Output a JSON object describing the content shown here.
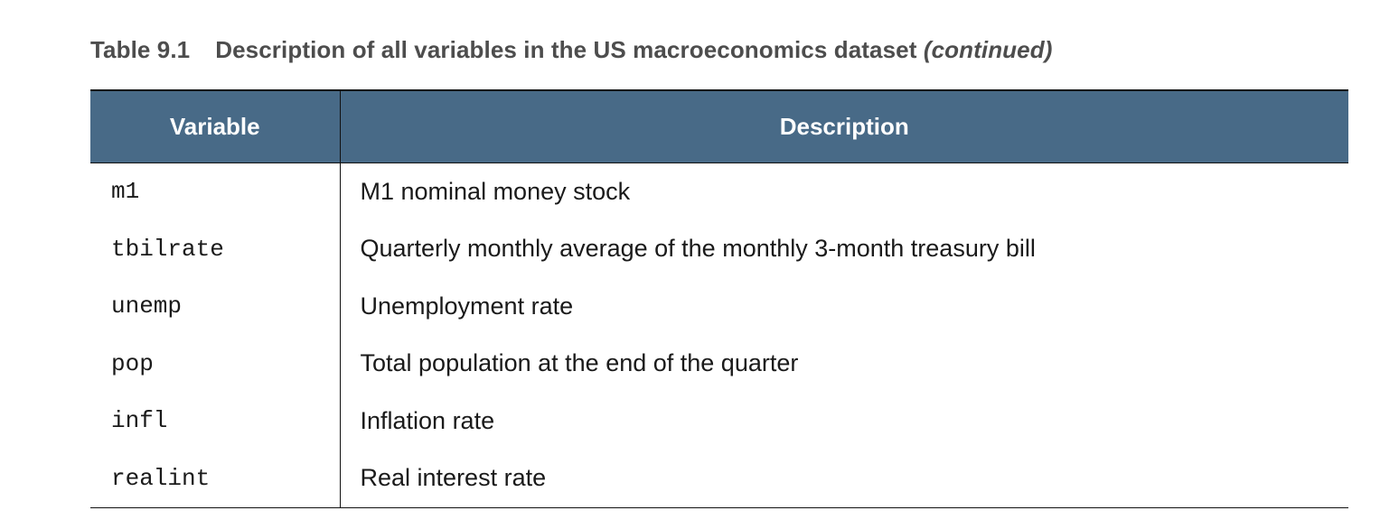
{
  "caption": {
    "number": "Table 9.1",
    "text": "Description of all variables in the US macroeconomics dataset",
    "continued": "(continued)"
  },
  "table": {
    "headers": [
      "Variable",
      "Description"
    ],
    "rows": [
      {
        "variable": "m1",
        "description": "M1 nominal money stock"
      },
      {
        "variable": "tbilrate",
        "description": "Quarterly monthly average of the monthly 3-month treasury bill"
      },
      {
        "variable": "unemp",
        "description": "Unemployment rate"
      },
      {
        "variable": "pop",
        "description": "Total population at the end of the quarter"
      },
      {
        "variable": "infl",
        "description": "Inflation rate"
      },
      {
        "variable": "realint",
        "description": "Real interest rate"
      }
    ]
  },
  "colors": {
    "header_background": "#486a87",
    "header_text": "#ffffff",
    "caption_text": "#4d4d4d"
  }
}
